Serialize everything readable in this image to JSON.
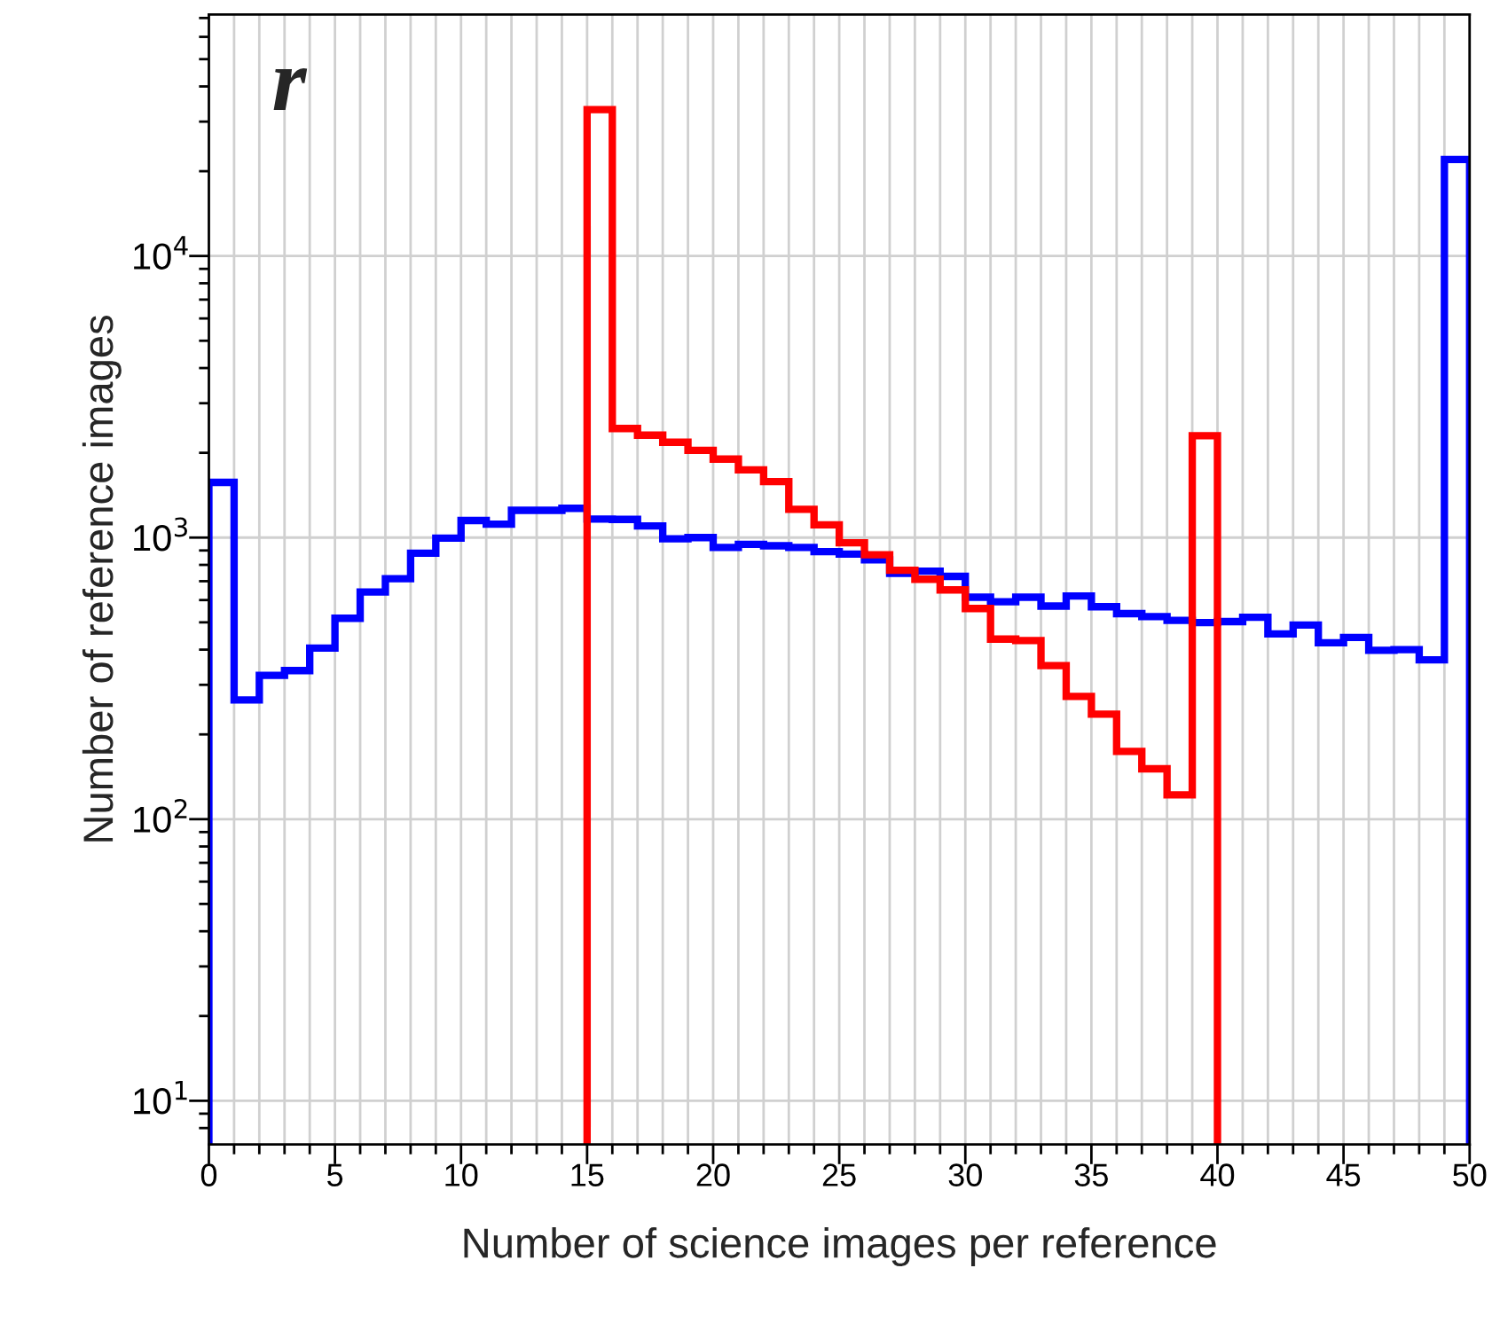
{
  "chart_data": {
    "type": "histogram",
    "xlabel": "Number of science images per reference",
    "ylabel": "Number of reference images",
    "annotations": [
      "r"
    ],
    "log": "y",
    "grid": true,
    "xlim": [
      0,
      50
    ],
    "ylim": [
      7,
      72000
    ],
    "xticks": [
      0,
      {
        "value": 1,
        "label": null
      },
      {
        "value": 2,
        "label": null
      },
      {
        "value": 3,
        "label": null
      },
      {
        "value": 4,
        "label": null
      },
      5,
      {
        "value": 6,
        "label": null
      },
      {
        "value": 7,
        "label": null
      },
      {
        "value": 8,
        "label": null
      },
      {
        "value": 9,
        "label": null
      },
      10,
      {
        "value": 11,
        "label": null
      },
      {
        "value": 12,
        "label": null
      },
      {
        "value": 13,
        "label": null
      },
      {
        "value": 14,
        "label": null
      },
      15,
      {
        "value": 16,
        "label": null
      },
      {
        "value": 17,
        "label": null
      },
      {
        "value": 18,
        "label": null
      },
      {
        "value": 19,
        "label": null
      },
      20,
      {
        "value": 21,
        "label": null
      },
      {
        "value": 22,
        "label": null
      },
      {
        "value": 23,
        "label": null
      },
      {
        "value": 24,
        "label": null
      },
      25,
      {
        "value": 26,
        "label": null
      },
      {
        "value": 27,
        "label": null
      },
      {
        "value": 28,
        "label": null
      },
      {
        "value": 29,
        "label": null
      },
      30,
      {
        "value": 31,
        "label": null
      },
      {
        "value": 32,
        "label": null
      },
      {
        "value": 33,
        "label": null
      },
      {
        "value": 34,
        "label": null
      },
      35,
      {
        "value": 36,
        "label": null
      },
      {
        "value": 37,
        "label": null
      },
      {
        "value": 38,
        "label": null
      },
      {
        "value": 39,
        "label": null
      },
      40,
      {
        "value": 41,
        "label": null
      },
      {
        "value": 42,
        "label": null
      },
      {
        "value": 43,
        "label": null
      },
      {
        "value": 44,
        "label": null
      },
      45,
      {
        "value": 46,
        "label": null
      },
      {
        "value": 47,
        "label": null
      },
      {
        "value": 48,
        "label": null
      },
      {
        "value": 49,
        "label": null
      },
      50
    ],
    "yticks": [
      {
        "value": 8,
        "label": null
      },
      {
        "value": 9,
        "label": null
      },
      {
        "value": 10,
        "label": "10$^{1}$"
      },
      {
        "value": 20,
        "label": null
      },
      {
        "value": 30,
        "label": null
      },
      {
        "value": 40,
        "label": null
      },
      {
        "value": 50,
        "label": null
      },
      {
        "value": 60,
        "label": null
      },
      {
        "value": 70,
        "label": null
      },
      {
        "value": 80,
        "label": null
      },
      {
        "value": 90,
        "label": null
      },
      {
        "value": 100,
        "label": "10$^{2}$"
      },
      {
        "value": 200,
        "label": null
      },
      {
        "value": 300,
        "label": null
      },
      {
        "value": 400,
        "label": null
      },
      {
        "value": 500,
        "label": null
      },
      {
        "value": 600,
        "label": null
      },
      {
        "value": 700,
        "label": null
      },
      {
        "value": 800,
        "label": null
      },
      {
        "value": 900,
        "label": null
      },
      {
        "value": 1000,
        "label": "10$^{3}$"
      },
      {
        "value": 2000,
        "label": null
      },
      {
        "value": 3000,
        "label": null
      },
      {
        "value": 4000,
        "label": null
      },
      {
        "value": 5000,
        "label": null
      },
      {
        "value": 6000,
        "label": null
      },
      {
        "value": 7000,
        "label": null
      },
      {
        "value": 8000,
        "label": null
      },
      {
        "value": 9000,
        "label": null
      },
      {
        "value": 10000,
        "label": "10$^{4}$"
      },
      {
        "value": 20000,
        "label": null
      },
      {
        "value": 30000,
        "label": null
      },
      {
        "value": 40000,
        "label": null
      },
      {
        "value": 50000,
        "label": null
      },
      {
        "value": 60000,
        "label": null
      },
      {
        "value": 70000,
        "label": null
      }
    ],
    "bins": [
      0,
      1,
      2,
      3,
      4,
      5,
      6,
      7,
      8,
      9,
      10,
      11,
      12,
      13,
      14,
      15,
      16,
      17,
      18,
      19,
      20,
      21,
      22,
      23,
      24,
      25,
      26,
      27,
      28,
      29,
      30,
      31,
      32,
      33,
      34,
      35,
      36,
      37,
      38,
      39,
      40,
      41,
      42,
      43,
      44,
      45,
      46,
      47,
      48,
      49,
      50
    ],
    "series": [
      {
        "color": "#0000ff",
        "values": [
          1570,
          265,
          324,
          337,
          405,
          517,
          641,
          714,
          880,
          995,
          1150,
          1116,
          1250,
          1250,
          1270,
          1164,
          1160,
          1100,
          990,
          1000,
          923,
          946,
          935,
          923,
          891,
          874,
          833,
          747,
          760,
          728,
          614,
          592,
          614,
          571,
          620,
          568,
          537,
          524,
          508,
          499,
          503,
          521,
          455,
          489,
          423,
          442,
          398,
          400,
          368,
          22000
        ]
      },
      {
        "color": "#ff0000",
        "bins": [
          15,
          16,
          17,
          18,
          19,
          20,
          21,
          22,
          23,
          24,
          25,
          26,
          27,
          28,
          29,
          30,
          31,
          32,
          33,
          34,
          35,
          36,
          37,
          38,
          39,
          40
        ],
        "values": [
          33100,
          2440,
          2310,
          2180,
          2040,
          1900,
          1740,
          1580,
          1260,
          1110,
          958,
          869,
          765,
          711,
          652,
          560,
          436,
          431,
          351,
          273,
          236,
          174,
          151,
          122,
          2300
        ]
      }
    ]
  }
}
